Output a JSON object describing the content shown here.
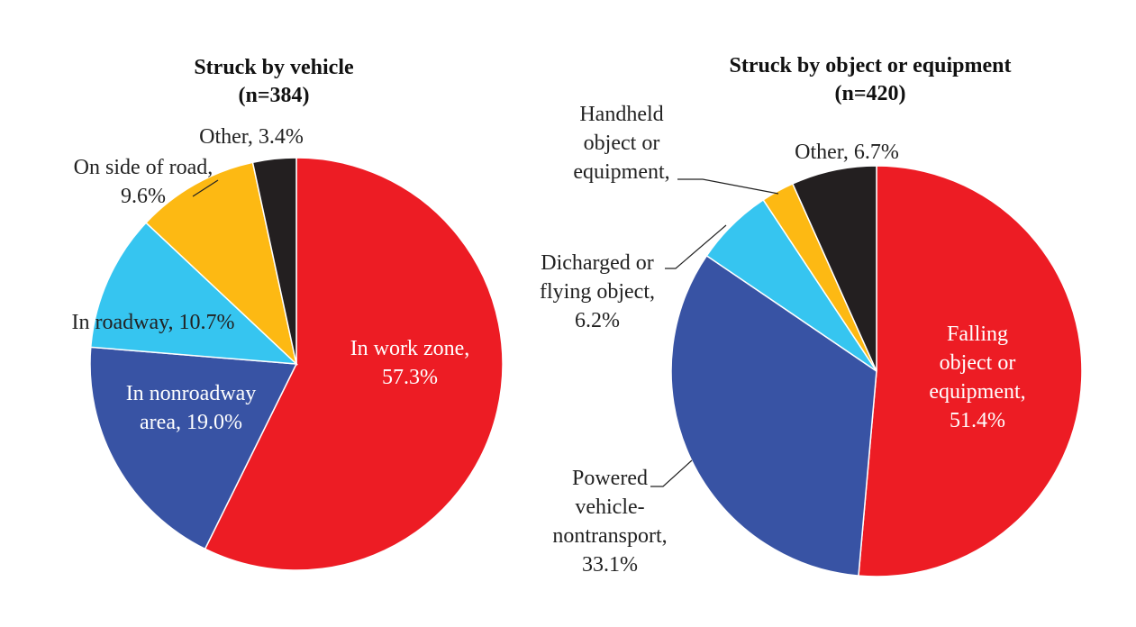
{
  "chart_data": [
    {
      "type": "pie",
      "title": "Struck by vehicle",
      "subtitle": "(n=384)",
      "slices": [
        {
          "name": "In work zone",
          "value": 57.3,
          "label": [
            "In work zone,",
            "57.3%"
          ],
          "color": "#ED1C24"
        },
        {
          "name": "In nonroadway area",
          "value": 19.0,
          "label": [
            "In nonroadway",
            "area, 19.0%"
          ],
          "color": "#3853A4"
        },
        {
          "name": "In roadway",
          "value": 10.7,
          "label": [
            "In roadway, 10.7%"
          ],
          "color": "#36C5F0"
        },
        {
          "name": "On side of road",
          "value": 9.6,
          "label": [
            "On side of road,",
            "9.6%"
          ],
          "color": "#FDB913"
        },
        {
          "name": "Other",
          "value": 3.4,
          "label": [
            "Other, 3.4%"
          ],
          "color": "#231F20"
        }
      ]
    },
    {
      "type": "pie",
      "title": "Struck by object or equipment",
      "subtitle": "(n=420)",
      "slices": [
        {
          "name": "Falling object or equipment",
          "value": 51.4,
          "label": [
            "Falling",
            "object or",
            "equipment,",
            "51.4%"
          ],
          "color": "#ED1C24"
        },
        {
          "name": "Powered vehicle-nontransport",
          "value": 33.1,
          "label": [
            "Powered",
            "vehicle-",
            "nontransport,",
            "33.1%"
          ],
          "color": "#3853A4"
        },
        {
          "name": "Dicharged or flying object",
          "value": 6.2,
          "label": [
            "Dicharged or",
            "flying object,",
            "6.2%"
          ],
          "color": "#36C5F0"
        },
        {
          "name": "Handheld object or equipment",
          "value": 2.6,
          "label": [
            "Handheld",
            "object or",
            "equipment,"
          ],
          "color": "#FDB913"
        },
        {
          "name": "Other",
          "value": 6.7,
          "label": [
            "Other, 6.7%"
          ],
          "color": "#231F20"
        }
      ]
    }
  ]
}
